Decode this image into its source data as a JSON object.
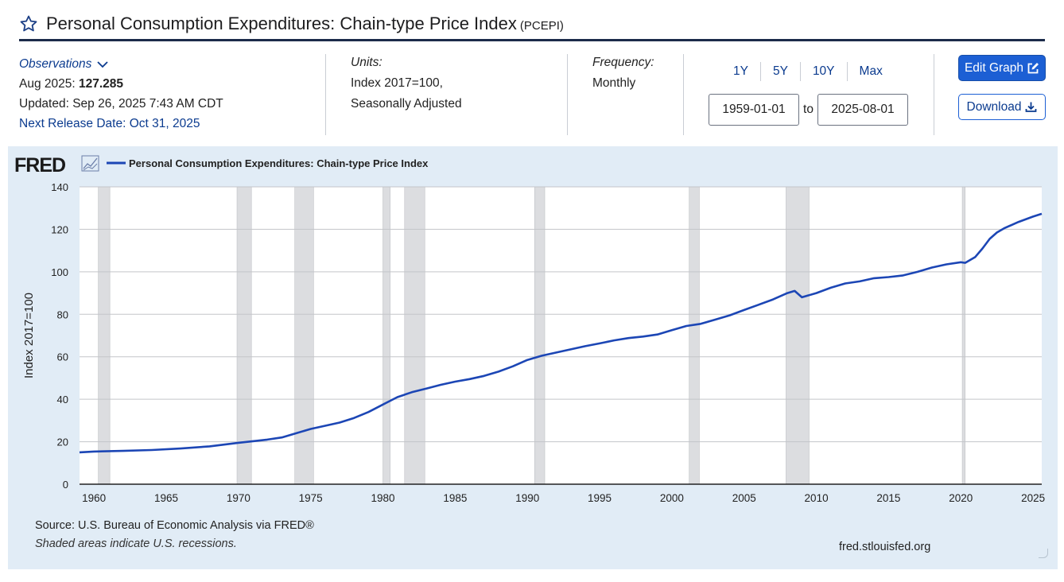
{
  "header": {
    "title": "Personal Consumption Expenditures: Chain-type Price Index",
    "series_code": "(PCEPI)"
  },
  "observations": {
    "label": "Observations",
    "latest_prefix": "Aug 2025:",
    "latest_value": "127.285",
    "updated": "Updated: Sep 26, 2025 7:43 AM CDT",
    "next_release": "Next Release Date: Oct 31, 2025"
  },
  "units": {
    "label": "Units:",
    "line1": "Index 2017=100,",
    "line2": "Seasonally Adjusted"
  },
  "frequency": {
    "label": "Frequency:",
    "value": "Monthly"
  },
  "range_buttons": [
    "1Y",
    "5Y",
    "10Y",
    "Max"
  ],
  "date_range": {
    "start": "1959-01-01",
    "separator": "to",
    "end": "2025-08-01"
  },
  "buttons": {
    "edit_graph": "Edit Graph",
    "download": "Download"
  },
  "colors": {
    "accent": "#1c5fd4",
    "series_line": "#1c46b5",
    "recession_shade": "#dcdde0",
    "panel_bg": "#e1ecf6"
  },
  "chart_data": {
    "type": "line",
    "logo": "FRED",
    "legend": "Personal Consumption Expenditures: Chain-type Price Index",
    "ylabel": "Index 2017=100",
    "xlabel": "",
    "xlim": [
      1959.0,
      2025.6
    ],
    "ylim": [
      0,
      140
    ],
    "yticks": [
      0,
      20,
      40,
      60,
      80,
      100,
      120,
      140
    ],
    "xticks": [
      1960,
      1965,
      1970,
      1975,
      1980,
      1985,
      1990,
      1995,
      2000,
      2005,
      2010,
      2015,
      2020,
      2025
    ],
    "recessions": [
      [
        1960.3,
        1961.1
      ],
      [
        1969.9,
        1970.9
      ],
      [
        1973.9,
        1975.2
      ],
      [
        1980.0,
        1980.5
      ],
      [
        1981.5,
        1982.9
      ],
      [
        1990.5,
        1991.2
      ],
      [
        2001.2,
        2001.9
      ],
      [
        2007.9,
        2009.5
      ],
      [
        2020.1,
        2020.3
      ]
    ],
    "series": [
      {
        "name": "PCEPI",
        "x": [
          1959.0,
          1960.0,
          1962.0,
          1964.0,
          1966.0,
          1968.0,
          1970.0,
          1972.0,
          1973.0,
          1974.0,
          1975.0,
          1976.0,
          1977.0,
          1978.0,
          1979.0,
          1980.0,
          1981.0,
          1982.0,
          1983.0,
          1984.0,
          1985.0,
          1986.0,
          1987.0,
          1988.0,
          1989.0,
          1990.0,
          1991.0,
          1992.0,
          1993.0,
          1994.0,
          1995.0,
          1996.0,
          1997.0,
          1998.0,
          1999.0,
          2000.0,
          2001.0,
          2002.0,
          2003.0,
          2004.0,
          2005.0,
          2006.0,
          2007.0,
          2008.0,
          2008.5,
          2009.0,
          2010.0,
          2011.0,
          2012.0,
          2013.0,
          2014.0,
          2015.0,
          2016.0,
          2017.0,
          2018.0,
          2019.0,
          2020.0,
          2020.3,
          2021.0,
          2021.5,
          2022.0,
          2022.5,
          2023.0,
          2024.0,
          2025.0,
          2025.6
        ],
        "values": [
          15.0,
          15.4,
          15.7,
          16.1,
          16.8,
          17.8,
          19.5,
          21.0,
          22.0,
          24.0,
          26.0,
          27.5,
          29.0,
          31.2,
          34.0,
          37.5,
          41.0,
          43.3,
          45.0,
          46.8,
          48.3,
          49.5,
          51.0,
          53.0,
          55.5,
          58.5,
          60.5,
          62.0,
          63.5,
          65.0,
          66.3,
          67.7,
          68.8,
          69.5,
          70.5,
          72.5,
          74.5,
          75.5,
          77.5,
          79.5,
          82.0,
          84.5,
          87.0,
          90.0,
          91.0,
          88.0,
          90.0,
          92.5,
          94.5,
          95.5,
          97.0,
          97.5,
          98.3,
          100.0,
          102.0,
          103.5,
          104.5,
          104.2,
          107.0,
          111.0,
          115.5,
          118.5,
          120.5,
          123.5,
          126.0,
          127.3
        ]
      }
    ]
  },
  "footer": {
    "source": "Source: U.S. Bureau of Economic Analysis via FRED®",
    "shaded_note": "Shaded areas indicate U.S. recessions.",
    "site": "fred.stlouisfed.org"
  }
}
